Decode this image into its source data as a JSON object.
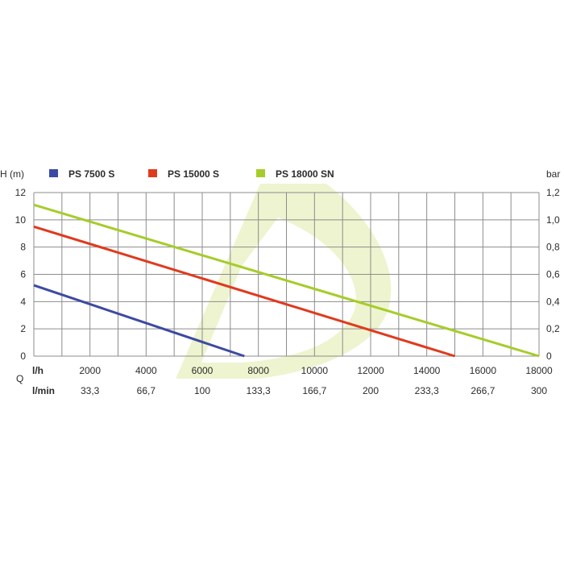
{
  "chart_data": {
    "type": "line",
    "legend_placement": "top",
    "grid": true,
    "left_axis": {
      "label": "H (m)",
      "range": [
        0,
        12
      ],
      "ticks": [
        "0",
        "2",
        "4",
        "6",
        "8",
        "10",
        "12"
      ]
    },
    "right_axis": {
      "label": "bar",
      "range": [
        0,
        1.2
      ],
      "ticks": [
        "0",
        "0,2",
        "0,4",
        "0,6",
        "0,8",
        "1,0",
        "1,2"
      ]
    },
    "x_axis": {
      "group_label": "Q",
      "range": [
        0,
        18000
      ],
      "lh_label": "l/h",
      "lh_ticks": [
        "2000",
        "4000",
        "6000",
        "8000",
        "10000",
        "12000",
        "14000",
        "16000",
        "18000"
      ],
      "lmin_label": "l/min",
      "lmin_ticks": [
        "33,3",
        "66,7",
        "100",
        "133,3",
        "166,7",
        "200",
        "233,3",
        "266,7",
        "300"
      ]
    },
    "series": [
      {
        "name": "PS 7500 S",
        "color": "#3d4aa3",
        "x": [
          0,
          7500
        ],
        "y": [
          5.2,
          0
        ]
      },
      {
        "name": "PS 15000 S",
        "color": "#e03a1e",
        "x": [
          0,
          15000
        ],
        "y": [
          9.5,
          0
        ]
      },
      {
        "name": "PS 18000 SN",
        "color": "#a6cc2a",
        "x": [
          0,
          18000
        ],
        "y": [
          11.1,
          0
        ]
      }
    ],
    "watermark_color": "#eef4cf"
  }
}
